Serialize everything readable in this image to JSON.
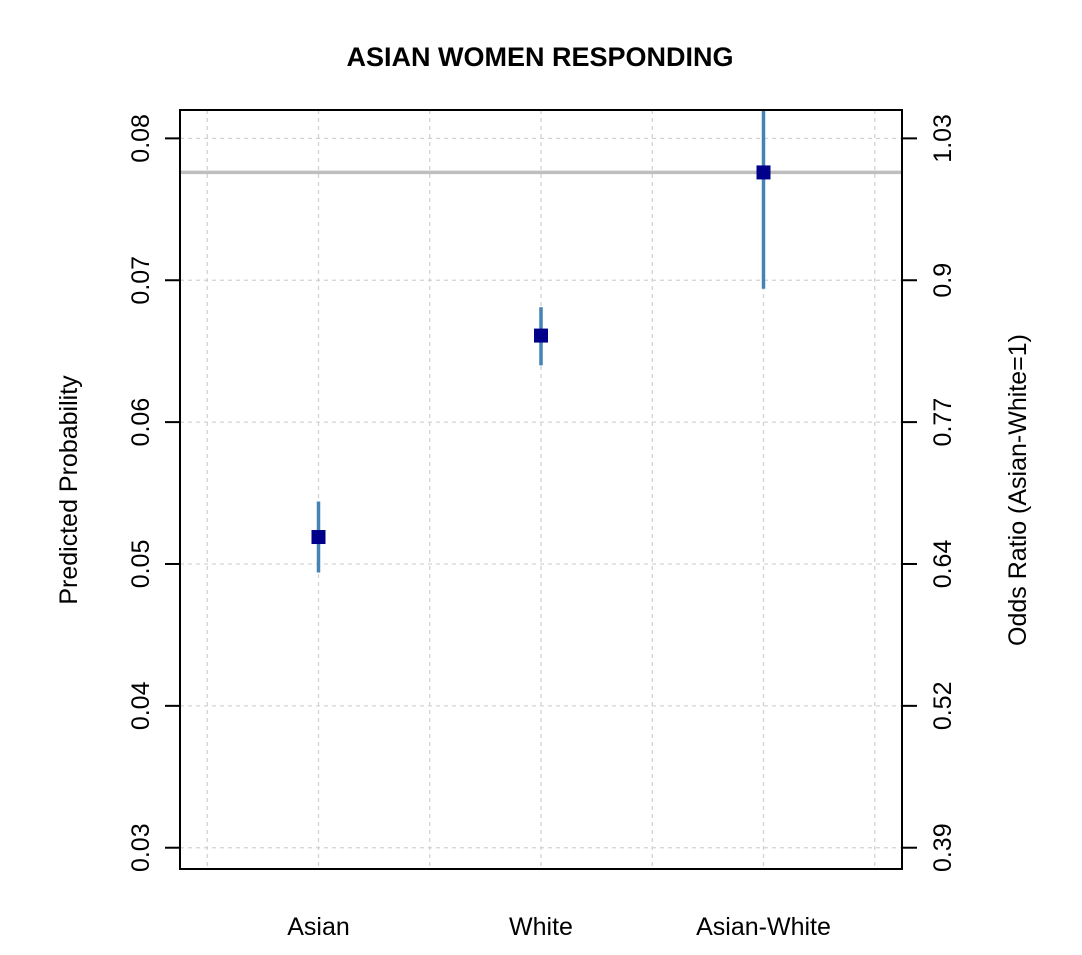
{
  "chart_data": {
    "type": "scatter",
    "title": "ASIAN WOMEN RESPONDING",
    "xlabel": "",
    "ylabel": "Predicted Probability",
    "y2label": "Odds Ratio (Asian-White=1)",
    "categories": [
      "Asian",
      "White",
      "Asian-White"
    ],
    "ylim": [
      0.0285,
      0.082
    ],
    "yticks": [
      "0.03",
      "0.04",
      "0.05",
      "0.06",
      "0.07",
      "0.08"
    ],
    "y2ticks": [
      "0.39",
      "0.52",
      "0.64",
      "0.77",
      "0.9",
      "1.03"
    ],
    "points": [
      {
        "category": "Asian",
        "value": 0.0519,
        "lower": 0.0494,
        "upper": 0.0544
      },
      {
        "category": "White",
        "value": 0.0661,
        "lower": 0.064,
        "upper": 0.0681
      },
      {
        "category": "Asian-White",
        "value": 0.0776,
        "lower": 0.0694,
        "upper": 0.082
      }
    ],
    "reference_line": 0.0776,
    "grid": true,
    "colors": {
      "point": "#00008b",
      "interval": "#4682b4",
      "reference": "#bebebe",
      "grid": "#d3d3d3"
    }
  }
}
